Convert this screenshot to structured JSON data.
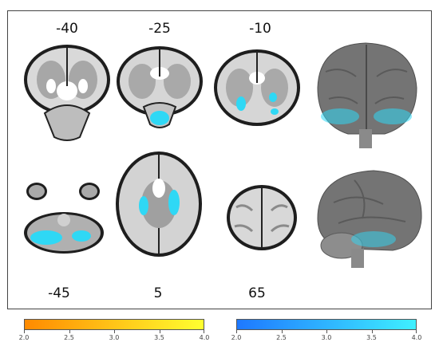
{
  "slice_labels": {
    "coronal_1": "-40",
    "coronal_2": "-25",
    "coronal_3": "-10",
    "axial_1": "-45",
    "axial_2": "5",
    "axial_3": "65"
  },
  "colorbars": {
    "warm": {
      "color_start": "#ff8a00",
      "color_end": "#ffff30",
      "ticks": [
        "2.0",
        "2.5",
        "3.0",
        "3.5",
        "4.0"
      ]
    },
    "cool": {
      "color_start": "#1e78ff",
      "color_end": "#3ff0ff",
      "ticks": [
        "2.0",
        "2.5",
        "3.0",
        "3.5",
        "4.0"
      ]
    }
  },
  "colors": {
    "activation": "#2fd8f5",
    "border": "#444444"
  }
}
